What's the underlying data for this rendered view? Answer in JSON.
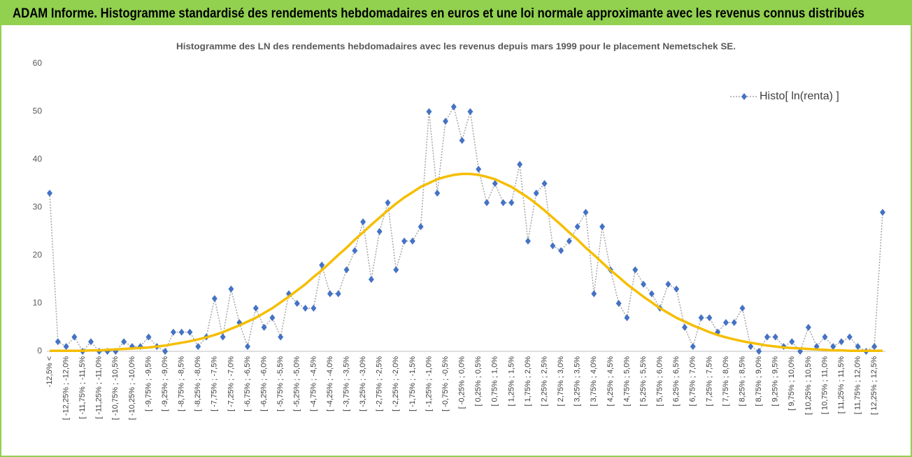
{
  "header": {
    "title": "ADAM Informe. Histogramme standardisé des rendements hebdomadaires en euros et une loi normale approximante avec les revenus connus distribués"
  },
  "chart_data": {
    "type": "line",
    "title": "Histogramme des LN des rendements hebdomadaires avec les revenus depuis mars 1999 pour le placement Nemetschek SE.",
    "categories": [
      "-12,5% <",
      null,
      "[ -12,25% ; -12,0%",
      null,
      "[ -11,75% ; -11,5%",
      null,
      "[ -11,25% ; -11,0%",
      null,
      "[ -10,75% ; -10,5%",
      null,
      "[ -10,25% ; -10,0%",
      null,
      "[ -9,75% ; -9,5%",
      null,
      "[ -9,25% ; -9,0%",
      null,
      "[ -8,75% ; -8,5%",
      null,
      "[ -8,25% ; -8,0%",
      null,
      "[ -7,75% ; -7,5%",
      null,
      "[ -7,25% ; -7,0%",
      null,
      "[ -6,75% ; -6,5%",
      null,
      "[ -6,25% ; -6,0%",
      null,
      "[ -5,75% ; -5,5%",
      null,
      "[ -5,25% ; -5,0%",
      null,
      "[ -4,75% ; -4,5%",
      null,
      "[ -4,25% ; -4,0%",
      null,
      "[ -3,75% ; -3,5%",
      null,
      "[ -3,25% ; -3,0%",
      null,
      "[ -2,75% ; -2,5%",
      null,
      "[ -2,25% ; -2,0%",
      null,
      "[ -1,75% ; -1,5%",
      null,
      "[ -1,25% ; -1,0%",
      null,
      "[ -0,75% ; -0,5%",
      null,
      "[ -0,25% ; 0,0%",
      null,
      "[ 0,25% ; 0,5%",
      null,
      "[ 0,75% ; 1,0%",
      null,
      "[ 1,25% ; 1,5%",
      null,
      "[ 1,75% ; 2,0%",
      null,
      "[ 2,25% ; 2,5%",
      null,
      "[ 2,75% ; 3,0%",
      null,
      "[ 3,25% ; 3,5%",
      null,
      "[ 3,75% ; 4,0%",
      null,
      "[ 4,25% ; 4,5%",
      null,
      "[ 4,75% ; 5,0%",
      null,
      "[ 5,25% ; 5,5%",
      null,
      "[ 5,75% ; 6,0%",
      null,
      "[ 6,25% ; 6,5%",
      null,
      "[ 6,75% ; 7,0%",
      null,
      "[ 7,25% ; 7,5%",
      null,
      "[ 7,75% ; 8,0%",
      null,
      "[ 8,25% ; 8,5%",
      null,
      "[ 8,75% ; 9,0%",
      null,
      "[ 9,25% ; 9,5%",
      null,
      "[ 9,75% ; 10,0%",
      null,
      "[ 10,25% ; 10,5%",
      null,
      "[ 10,75% ; 11,0%",
      null,
      "[ 11,25% ; 11,5%",
      null,
      "[ 11,75% ; 12,0%",
      null,
      "[ 12,25% ; 12,5%",
      null
    ],
    "series": [
      {
        "name": "Histo[ ln(renta) ]",
        "color": "#4472c4",
        "line_color": "#a6a6a6",
        "values": [
          33,
          2,
          1,
          3,
          0,
          2,
          0,
          0,
          0,
          2,
          1,
          1,
          3,
          1,
          0,
          4,
          4,
          4,
          1,
          3,
          11,
          3,
          13,
          6,
          1,
          9,
          5,
          7,
          3,
          12,
          10,
          9,
          9,
          18,
          12,
          12,
          17,
          21,
          27,
          15,
          25,
          31,
          17,
          23,
          23,
          26,
          50,
          33,
          48,
          51,
          44,
          50,
          38,
          31,
          35,
          31,
          31,
          39,
          23,
          33,
          35,
          22,
          21,
          23,
          26,
          29,
          12,
          26,
          17,
          10,
          7,
          17,
          14,
          12,
          9,
          14,
          13,
          5,
          1,
          7,
          7,
          4,
          6,
          6,
          9,
          1,
          0,
          3,
          3,
          1,
          2,
          0,
          5,
          1,
          3,
          1,
          2,
          3,
          1,
          0,
          1,
          29
        ]
      },
      {
        "color": "#f5be00",
        "values": [
          0.1,
          0.1,
          0.1,
          0.1,
          0.1,
          0.2,
          0.2,
          0.3,
          0.4,
          0.5,
          0.6,
          0.7,
          0.8,
          1.0,
          1.2,
          1.5,
          1.8,
          2.1,
          2.5,
          2.9,
          3.4,
          4.0,
          4.7,
          5.4,
          6.2,
          7.0,
          8.0,
          9.0,
          10.2,
          11.4,
          12.7,
          14.0,
          15.5,
          16.9,
          18.5,
          20.1,
          21.6,
          23.3,
          24.8,
          26.4,
          27.9,
          29.4,
          30.8,
          32.1,
          33.2,
          34.3,
          35.1,
          35.9,
          36.4,
          36.8,
          37.0,
          37.0,
          36.8,
          36.4,
          35.9,
          35.1,
          34.3,
          33.2,
          32.1,
          30.8,
          29.4,
          27.9,
          26.4,
          24.8,
          23.3,
          21.6,
          20.1,
          18.5,
          16.9,
          15.5,
          14.0,
          12.7,
          11.4,
          10.2,
          9.0,
          8.0,
          7.0,
          6.2,
          5.4,
          4.7,
          4.0,
          3.4,
          2.9,
          2.5,
          2.1,
          1.8,
          1.5,
          1.2,
          1.0,
          0.8,
          0.7,
          0.6,
          0.5,
          0.4,
          0.3,
          0.2,
          0.2,
          0.1,
          0.1,
          0.1,
          0.1,
          0.1
        ]
      }
    ],
    "ylim": [
      0,
      60
    ],
    "yticks": [
      0,
      10,
      20,
      30,
      40,
      50,
      60
    ],
    "grid": false,
    "legend": "upper right"
  }
}
